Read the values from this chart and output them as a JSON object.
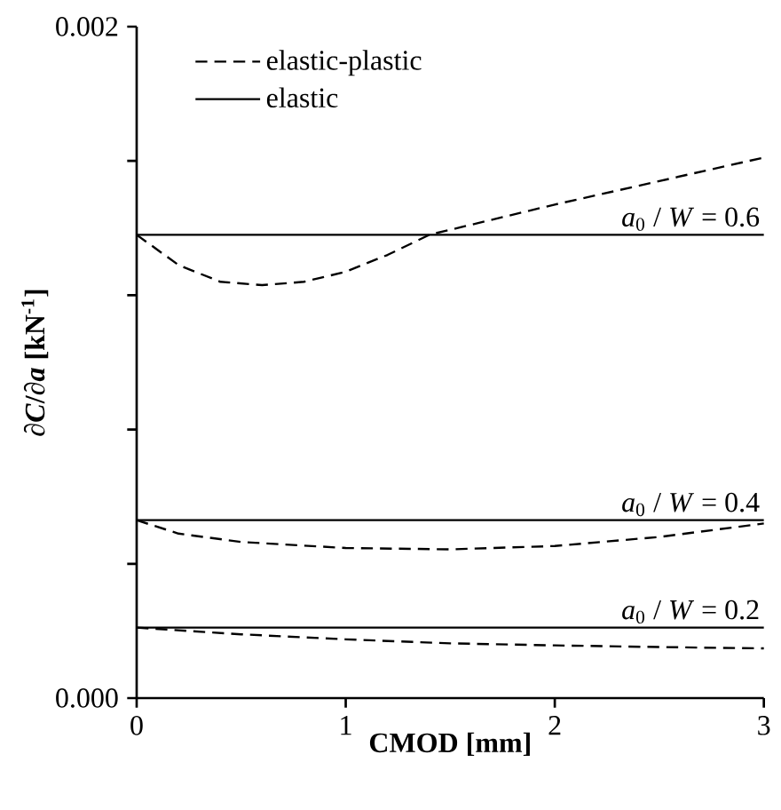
{
  "chart_data": {
    "type": "line",
    "xlabel": "CMOD [mm]",
    "ylabel": "∂*C*/∂*a* [kN$^{-1}$]",
    "xlim": [
      0,
      3
    ],
    "ylim": [
      0,
      0.002
    ],
    "xticks": [
      0,
      1,
      2,
      3
    ],
    "yticks": [
      {
        "value": 0,
        "label": "0.000"
      },
      {
        "value": 0.0004,
        "label": null
      },
      {
        "value": 0.0008,
        "label": null
      },
      {
        "value": 0.0012,
        "label": null
      },
      {
        "value": 0.0016,
        "label": null
      },
      {
        "value": 0.002,
        "label": "0.002"
      }
    ],
    "legend": "top left",
    "grid": false,
    "marker": "none",
    "series": [
      {
        "name": "elastic-plastic",
        "color": "#000000",
        "line_style": "dashed",
        "x": [
          0,
          0.2,
          0.4,
          0.6,
          0.8,
          1.0,
          1.2,
          1.4,
          1.6,
          2.0,
          2.5,
          3.0
        ],
        "values": [
          0.00138,
          0.00129,
          0.00124,
          0.00123,
          0.00124,
          0.00127,
          0.00132,
          0.00138,
          0.00141,
          0.00147,
          0.00154,
          0.00161
        ]
      },
      {
        "name": "elastic",
        "color": "#000000",
        "line_style": "solid",
        "x": [
          0,
          3
        ],
        "values": [
          0.00138,
          0.00138
        ]
      },
      {
        "color": "#000000",
        "line_style": "dashed",
        "x": [
          0,
          0.2,
          0.5,
          1.0,
          1.5,
          2.0,
          2.5,
          3.0
        ],
        "values": [
          0.00053,
          0.00049,
          0.000465,
          0.000447,
          0.000443,
          0.000453,
          0.00048,
          0.00052
        ]
      },
      {
        "color": "#000000",
        "line_style": "solid",
        "x": [
          0,
          3
        ],
        "values": [
          0.00053,
          0.00053
        ]
      },
      {
        "color": "#000000",
        "line_style": "dashed",
        "x": [
          0,
          0.5,
          1.0,
          1.5,
          2.0,
          2.5,
          3.0
        ],
        "values": [
          0.00021,
          0.00019,
          0.000175,
          0.000163,
          0.000157,
          0.000152,
          0.000148
        ]
      },
      {
        "color": "#000000",
        "line_style": "solid",
        "x": [
          0,
          3
        ],
        "values": [
          0.00021,
          0.00021
        ]
      }
    ],
    "annotations": [
      {
        "text": "*a*$_{0}$ / *W* = 0.6",
        "y": 0.00138
      },
      {
        "text": "*a*$_{0}$ / *W* = 0.4",
        "y": 0.00053
      },
      {
        "text": "*a*$_{0}$ / *W* = 0.2",
        "y": 0.00021
      }
    ]
  }
}
